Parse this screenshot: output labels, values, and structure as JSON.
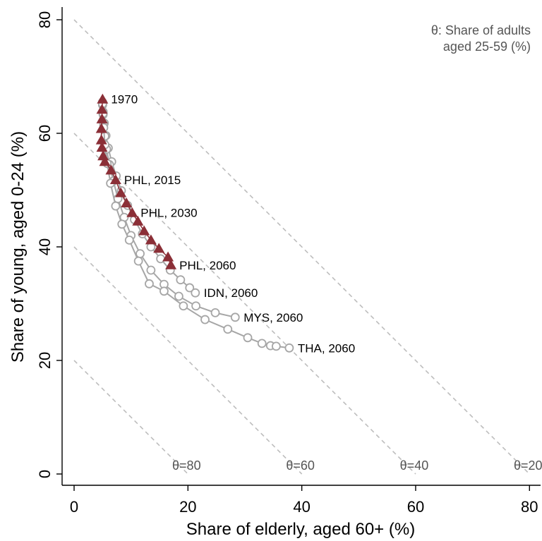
{
  "chart_data": {
    "type": "line",
    "xlabel": "Share of elderly, aged 60+ (%)",
    "ylabel": "Share of young, aged 0-24 (%)",
    "xlim": [
      0,
      80
    ],
    "ylim": [
      0,
      80
    ],
    "x_ticks": [
      "0",
      "20",
      "40",
      "60",
      "80"
    ],
    "y_ticks": [
      "0",
      "20",
      "40",
      "60",
      "80"
    ],
    "grid": false,
    "note_lines": [
      "θ: Share of adults",
      "aged 25-59 (%)"
    ],
    "isolines": [
      {
        "theta": 80,
        "label": "θ=80"
      },
      {
        "theta": 60,
        "label": "θ=60"
      },
      {
        "theta": 40,
        "label": "θ=40"
      },
      {
        "theta": 20,
        "label": "θ=20"
      }
    ],
    "colors": {
      "grey_series": "#a6a6a6",
      "highlight": "#8b2f37",
      "isoline": "#bdbdbd"
    },
    "series": [
      {
        "marker": "circle",
        "color": "#a6a6a6",
        "x": [
          5.0,
          5.1,
          5.3,
          5.6,
          6.0,
          6.6,
          7.4,
          8.3,
          9.4,
          10.6,
          12.0,
          13.5,
          15.2,
          16.9,
          18.7,
          20.3,
          21.3
        ],
        "y": [
          65.5,
          63.8,
          61.8,
          59.6,
          57.4,
          55.0,
          52.5,
          49.9,
          47.3,
          44.8,
          42.3,
          40.0,
          37.9,
          35.9,
          34.2,
          32.8,
          31.9
        ]
      },
      {
        "marker": "circle",
        "color": "#a6a6a6",
        "x": [
          5.0,
          5.1,
          5.2,
          5.4,
          5.7,
          6.2,
          6.9,
          7.7,
          8.8,
          10.0,
          11.6,
          13.5,
          15.8,
          18.4,
          21.4,
          24.8,
          28.3
        ],
        "y": [
          65.0,
          63.3,
          61.5,
          59.5,
          57.2,
          54.5,
          51.6,
          48.5,
          45.2,
          42.0,
          38.8,
          35.9,
          33.4,
          31.3,
          29.6,
          28.4,
          27.6
        ]
      },
      {
        "marker": "circle",
        "color": "#a6a6a6",
        "x": [
          5.0,
          5.1,
          5.2,
          5.4,
          5.8,
          6.4,
          7.3,
          8.4,
          9.7,
          11.3,
          13.2,
          15.8,
          19.2,
          23.0,
          27.0,
          30.5,
          33.0,
          34.5,
          35.5,
          37.8
        ],
        "y": [
          65.2,
          63.5,
          61.0,
          58.0,
          54.7,
          51.2,
          47.2,
          44.0,
          41.2,
          37.5,
          33.5,
          32.2,
          29.6,
          27.2,
          25.5,
          24.0,
          23.0,
          22.6,
          22.5,
          22.2
        ]
      }
    ],
    "highlight_series": {
      "name": "PHL",
      "marker": "triangle",
      "color": "#8b2f37",
      "x": [
        5.0,
        4.9,
        4.9,
        4.8,
        4.8,
        4.9,
        5.1,
        5.4,
        6.5,
        7.3,
        8.2,
        9.2,
        10.2,
        11.2,
        12.3,
        13.5,
        14.9,
        16.5,
        17.0
      ],
      "y": [
        66.0,
        64.2,
        62.5,
        60.8,
        58.8,
        57.5,
        56.0,
        55.0,
        53.5,
        51.8,
        49.5,
        47.7,
        46.0,
        44.5,
        42.8,
        41.2,
        39.7,
        38.2,
        36.8
      ]
    },
    "annotations": [
      {
        "text": "1970",
        "x": 5.0,
        "y": 66.0
      },
      {
        "text": "PHL, 2015",
        "x": 7.3,
        "y": 51.8
      },
      {
        "text": "PHL, 2030",
        "x": 10.2,
        "y": 46.0
      },
      {
        "text": "PHL, 2060",
        "x": 17.0,
        "y": 36.8
      },
      {
        "text": "IDN, 2060",
        "x": 21.3,
        "y": 31.9
      },
      {
        "text": "MYS, 2060",
        "x": 28.3,
        "y": 27.6
      },
      {
        "text": "THA, 2060",
        "x": 37.8,
        "y": 22.2
      }
    ]
  }
}
